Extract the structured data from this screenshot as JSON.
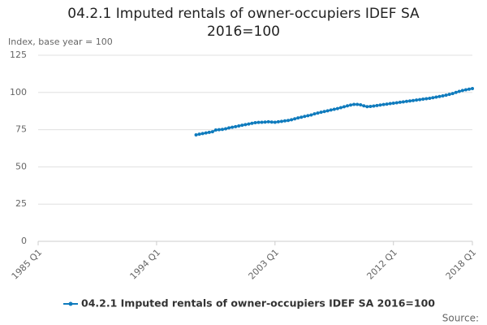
{
  "chart_data": {
    "type": "line",
    "title": "04.2.1 Imputed rentals of owner-occupiers IDEF SA 2016=100",
    "y_axis_label": "Index, base year = 100",
    "source": "Source:",
    "categories": [
      "1985 Q1",
      null,
      null,
      null,
      null,
      null,
      null,
      null,
      null,
      null,
      null,
      null,
      null,
      null,
      null,
      null,
      null,
      null,
      null,
      null,
      null,
      null,
      null,
      null,
      null,
      null,
      null,
      null,
      null,
      null,
      null,
      null,
      null,
      null,
      null,
      null,
      "1994 Q1",
      null,
      null,
      null,
      null,
      null,
      null,
      null,
      null,
      null,
      null,
      null,
      null,
      null,
      null,
      null,
      null,
      null,
      null,
      null,
      null,
      null,
      null,
      null,
      null,
      null,
      null,
      null,
      null,
      null,
      null,
      null,
      null,
      null,
      null,
      null,
      "2003 Q1",
      null,
      null,
      null,
      null,
      null,
      null,
      null,
      null,
      null,
      null,
      null,
      null,
      null,
      null,
      null,
      null,
      null,
      null,
      null,
      null,
      null,
      null,
      null,
      null,
      null,
      null,
      null,
      null,
      null,
      null,
      null,
      null,
      null,
      null,
      null,
      "2012 Q1",
      null,
      null,
      null,
      null,
      null,
      null,
      null,
      null,
      null,
      null,
      null,
      null,
      null,
      null,
      null,
      null,
      null,
      null,
      null,
      null,
      null,
      null,
      null,
      "2018 Q1"
    ],
    "series": [
      {
        "name": "04.2.1 Imputed rentals of owner-occupiers IDEF SA 2016=100",
        "color": "#0f7bbd",
        "values": [
          null,
          null,
          null,
          null,
          null,
          null,
          null,
          null,
          null,
          null,
          null,
          null,
          null,
          null,
          null,
          null,
          null,
          null,
          null,
          null,
          null,
          null,
          null,
          null,
          null,
          null,
          null,
          null,
          null,
          null,
          null,
          null,
          null,
          null,
          null,
          null,
          null,
          null,
          null,
          null,
          null,
          null,
          null,
          null,
          null,
          null,
          null,
          null,
          71.5,
          72,
          72.4,
          72.8,
          73.2,
          73.6,
          74.8,
          75,
          75.2,
          75.6,
          76.2,
          76.6,
          77,
          77.5,
          78,
          78.4,
          78.8,
          79.3,
          79.7,
          79.9,
          80,
          80.1,
          80.3,
          80.1,
          80,
          80.3,
          80.6,
          80.9,
          81.2,
          81.7,
          82.3,
          82.9,
          83.4,
          83.9,
          84.4,
          84.9,
          85.6,
          86.2,
          86.7,
          87.2,
          87.7,
          88.2,
          88.7,
          89.2,
          89.8,
          90.4,
          91,
          91.6,
          92,
          92,
          91.7,
          91,
          90.5,
          90.6,
          90.9,
          91.2,
          91.6,
          91.9,
          92.2,
          92.5,
          92.8,
          93.1,
          93.4,
          93.7,
          94,
          94.3,
          94.6,
          94.9,
          95.2,
          95.5,
          95.8,
          96.1,
          96.5,
          96.9,
          97.3,
          97.7,
          98.2,
          98.7,
          99.3,
          100,
          100.7,
          101.3,
          101.8,
          102.2,
          102.6
        ]
      }
    ],
    "ylim": [
      0,
      125
    ],
    "yticks": [
      0,
      25,
      50,
      75,
      100,
      125
    ],
    "grid": true,
    "legend": "bottom"
  }
}
